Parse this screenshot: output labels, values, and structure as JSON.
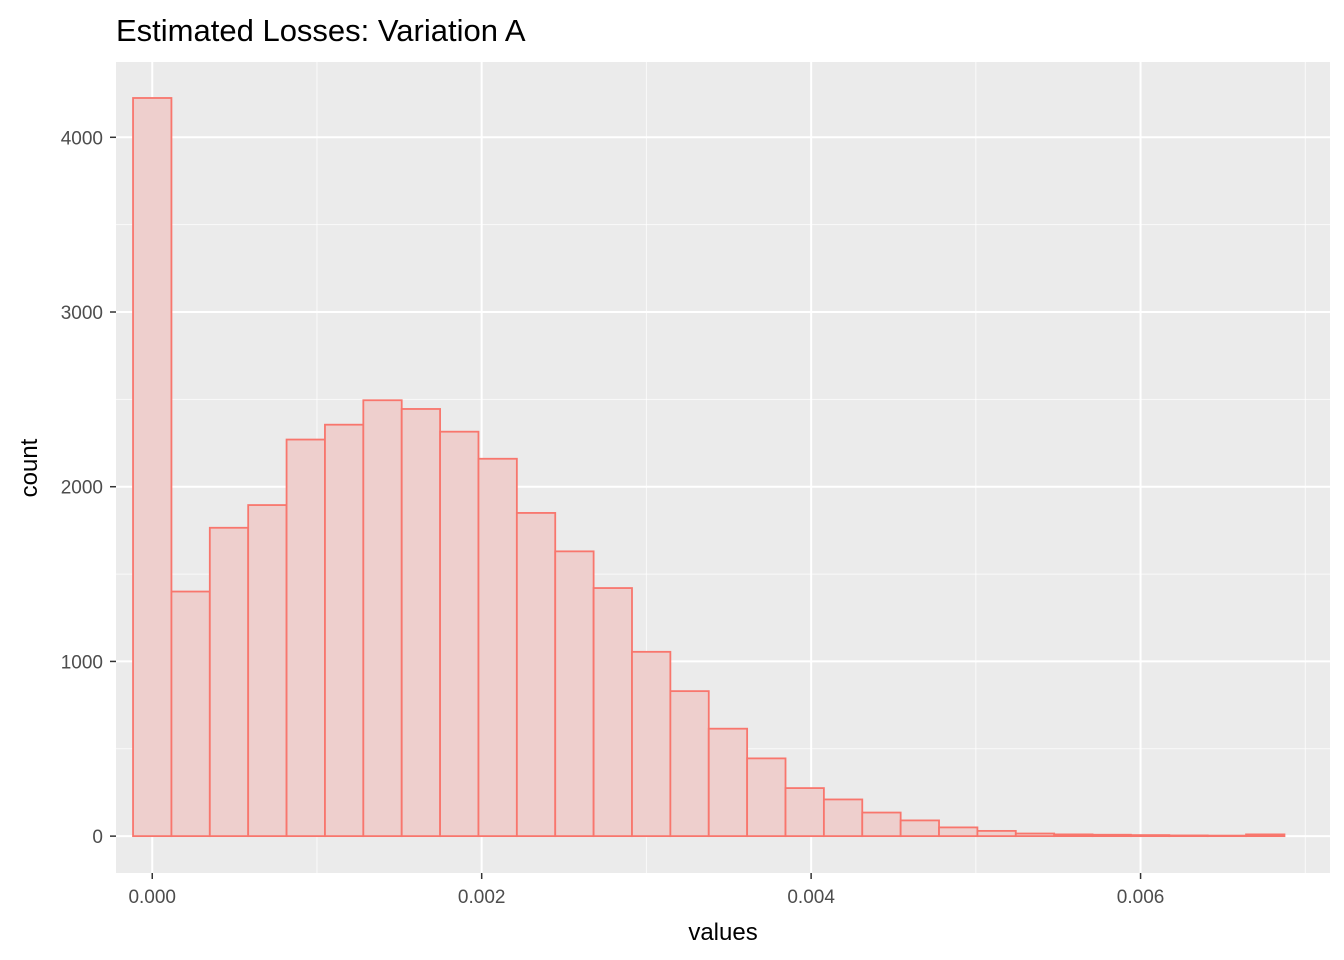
{
  "chart_data": {
    "type": "bar",
    "title": "Estimated Losses: Variation A",
    "xlabel": "values",
    "ylabel": "count",
    "xlim": [
      -0.00022,
      0.00715
    ],
    "ylim": [
      -211,
      4431
    ],
    "x_ticks": [
      {
        "value": 0.0,
        "label": "0.000"
      },
      {
        "value": 0.002,
        "label": "0.002"
      },
      {
        "value": 0.004,
        "label": "0.004"
      },
      {
        "value": 0.006,
        "label": "0.006"
      }
    ],
    "y_ticks": [
      {
        "value": 0,
        "label": "0"
      },
      {
        "value": 1000,
        "label": "1000"
      },
      {
        "value": 2000,
        "label": "2000"
      },
      {
        "value": 3000,
        "label": "3000"
      },
      {
        "value": 4000,
        "label": "4000"
      }
    ],
    "bin_width": 0.000233,
    "bin_centers": [
      0.0,
      0.000233,
      0.000466,
      0.000699,
      0.000932,
      0.001165,
      0.001398,
      0.001631,
      0.001864,
      0.002097,
      0.00233,
      0.002563,
      0.002796,
      0.003029,
      0.003262,
      0.003495,
      0.003728,
      0.003961,
      0.004194,
      0.004427,
      0.00466,
      0.004893,
      0.005126,
      0.005359,
      0.005592,
      0.005825,
      0.006058,
      0.006291,
      0.006524,
      0.006757
    ],
    "values": [
      4225,
      1400,
      1765,
      1895,
      2270,
      2355,
      2495,
      2445,
      2315,
      2160,
      1850,
      1630,
      1420,
      1055,
      830,
      615,
      445,
      275,
      210,
      135,
      90,
      50,
      30,
      15,
      10,
      8,
      6,
      4,
      3,
      10
    ],
    "fill_color": "#eecfcd",
    "outline_color": "#f8766d",
    "panel_color": "#ebebeb",
    "grid": true,
    "legend": "none"
  }
}
